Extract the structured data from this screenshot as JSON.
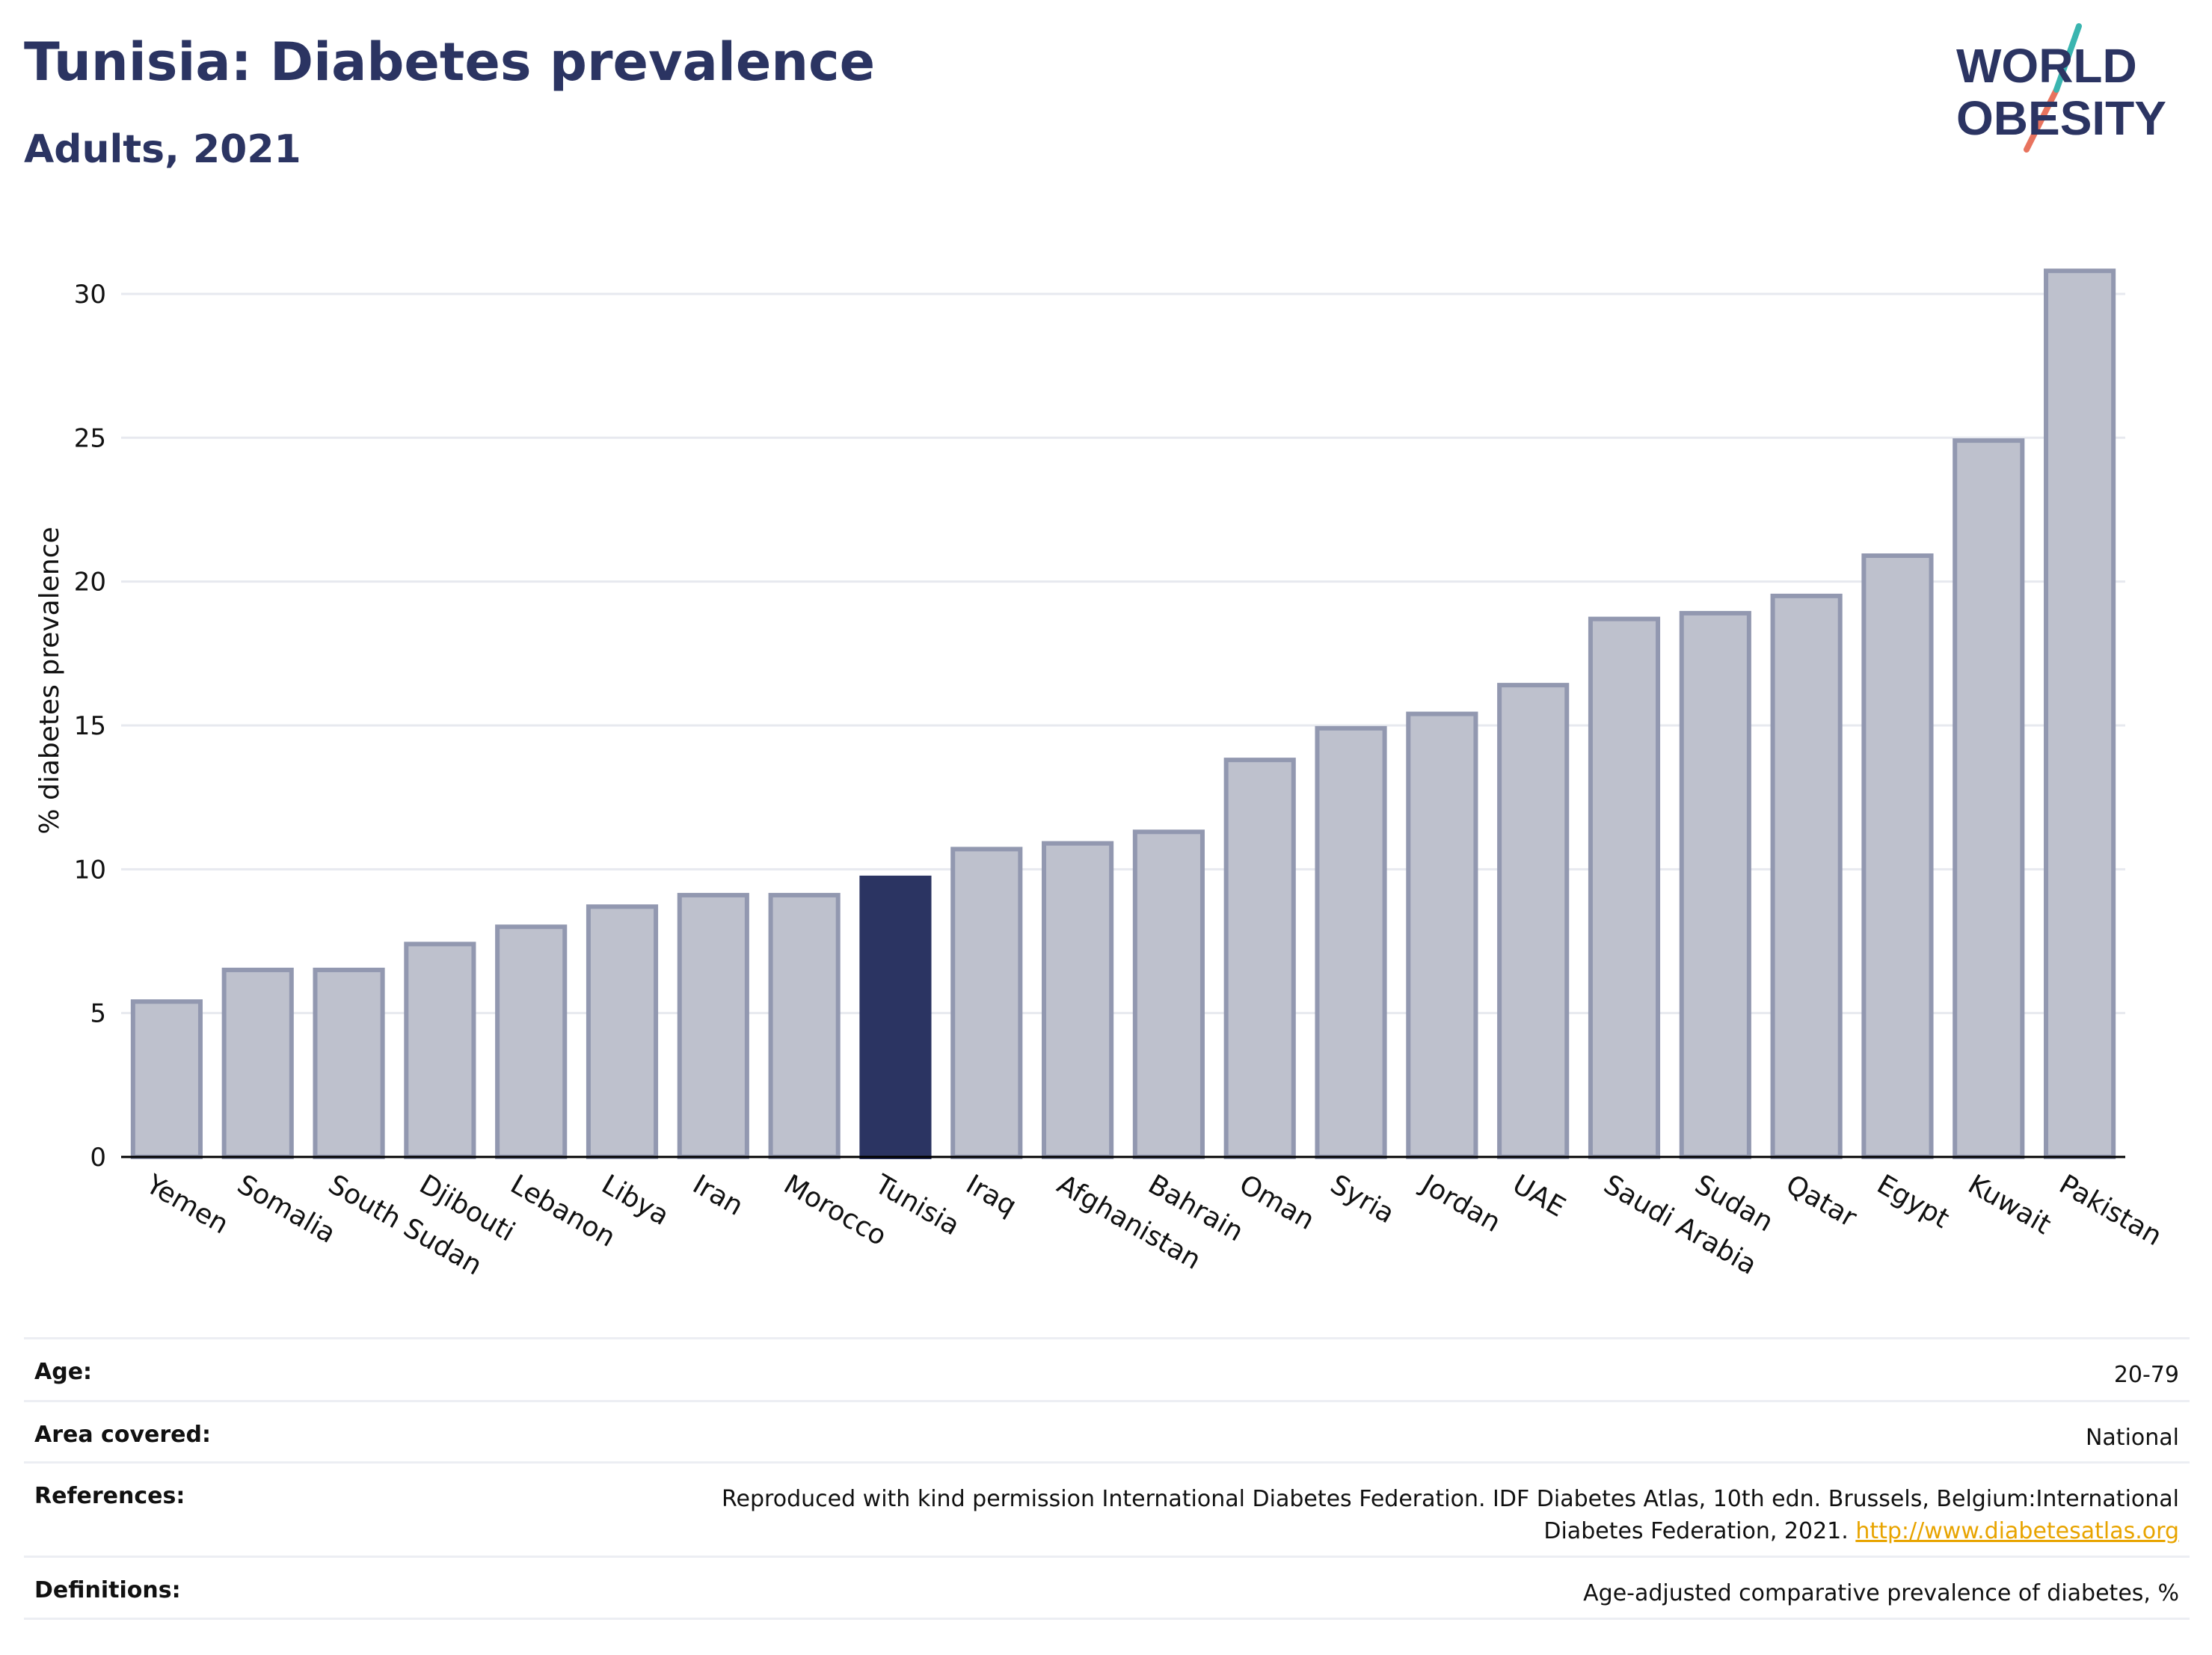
{
  "header": {
    "title": "Tunisia: Diabetes prevalence",
    "subtitle": "Adults, 2021",
    "logo_line1": "WORLD",
    "logo_line2": "OBESITY"
  },
  "chart_data": {
    "type": "bar",
    "title": "Tunisia: Diabetes prevalence",
    "subtitle": "Adults, 2021",
    "xlabel": "",
    "ylabel": "% diabetes prevalence",
    "ylim": [
      0,
      32
    ],
    "yticks": [
      0,
      5,
      10,
      15,
      20,
      25,
      30
    ],
    "grid": true,
    "highlight": "Tunisia",
    "colors": {
      "bar_fill": "#bec1cd",
      "bar_edge": "#9298b0",
      "highlight": "#2b3462",
      "grid": "#e7e9ef",
      "axis": "#000000"
    },
    "categories": [
      "Yemen",
      "Somalia",
      "South Sudan",
      "Djibouti",
      "Lebanon",
      "Libya",
      "Iran",
      "Morocco",
      "Tunisia",
      "Iraq",
      "Afghanistan",
      "Bahrain",
      "Oman",
      "Syria",
      "Jordan",
      "UAE",
      "Saudi Arabia",
      "Sudan",
      "Qatar",
      "Egypt",
      "Kuwait",
      "Pakistan"
    ],
    "values": [
      5.4,
      6.5,
      6.5,
      7.4,
      8.0,
      8.7,
      9.1,
      9.1,
      9.7,
      10.7,
      10.9,
      11.3,
      13.8,
      14.9,
      15.4,
      16.4,
      18.7,
      18.9,
      19.5,
      20.9,
      24.9,
      30.8
    ]
  },
  "meta": {
    "age_label": "Age:",
    "age_value": "20-79",
    "area_label": "Area covered:",
    "area_value": "National",
    "references_label": "References:",
    "references_text_line1": "Reproduced with kind permission International Diabetes Federation.  IDF Diabetes Atlas, 10th edn. Brussels, Belgium:International",
    "references_text_line2": "Diabetes Federation, 2021.",
    "references_link": "http://www.diabetesatlas.org",
    "definitions_label": "Definitions:",
    "definitions_value": "Age-adjusted comparative prevalence of diabetes, %"
  }
}
